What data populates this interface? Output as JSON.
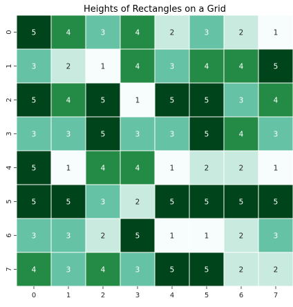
{
  "chart_data": {
    "type": "heatmap",
    "title": "Heights of Rectangles on a Grid",
    "xlabel": "",
    "ylabel": "",
    "x_categories": [
      "0",
      "1",
      "2",
      "3",
      "4",
      "5",
      "6",
      "7"
    ],
    "y_categories": [
      "0",
      "1",
      "2",
      "3",
      "4",
      "5",
      "6",
      "7"
    ],
    "values": [
      [
        5,
        4,
        3,
        4,
        2,
        3,
        2,
        1
      ],
      [
        3,
        2,
        1,
        4,
        3,
        4,
        4,
        5
      ],
      [
        5,
        4,
        5,
        1,
        5,
        5,
        3,
        4
      ],
      [
        3,
        3,
        5,
        3,
        3,
        5,
        4,
        3
      ],
      [
        5,
        1,
        4,
        4,
        1,
        2,
        2,
        1
      ],
      [
        5,
        5,
        3,
        2,
        5,
        5,
        5,
        5
      ],
      [
        3,
        3,
        2,
        5,
        1,
        1,
        2,
        3
      ],
      [
        4,
        3,
        4,
        3,
        5,
        5,
        2,
        2
      ]
    ],
    "value_range": [
      1,
      5
    ],
    "colorscale": {
      "1": "#f7fcfd",
      "2": "#c9eadf",
      "3": "#66c2a4",
      "4": "#238b45",
      "5": "#00441b"
    },
    "annotated": true,
    "colorbar": false,
    "cell_border_color": "#ffffff",
    "annotation_color_light": "#ffffff",
    "annotation_color_dark": "#262626"
  }
}
